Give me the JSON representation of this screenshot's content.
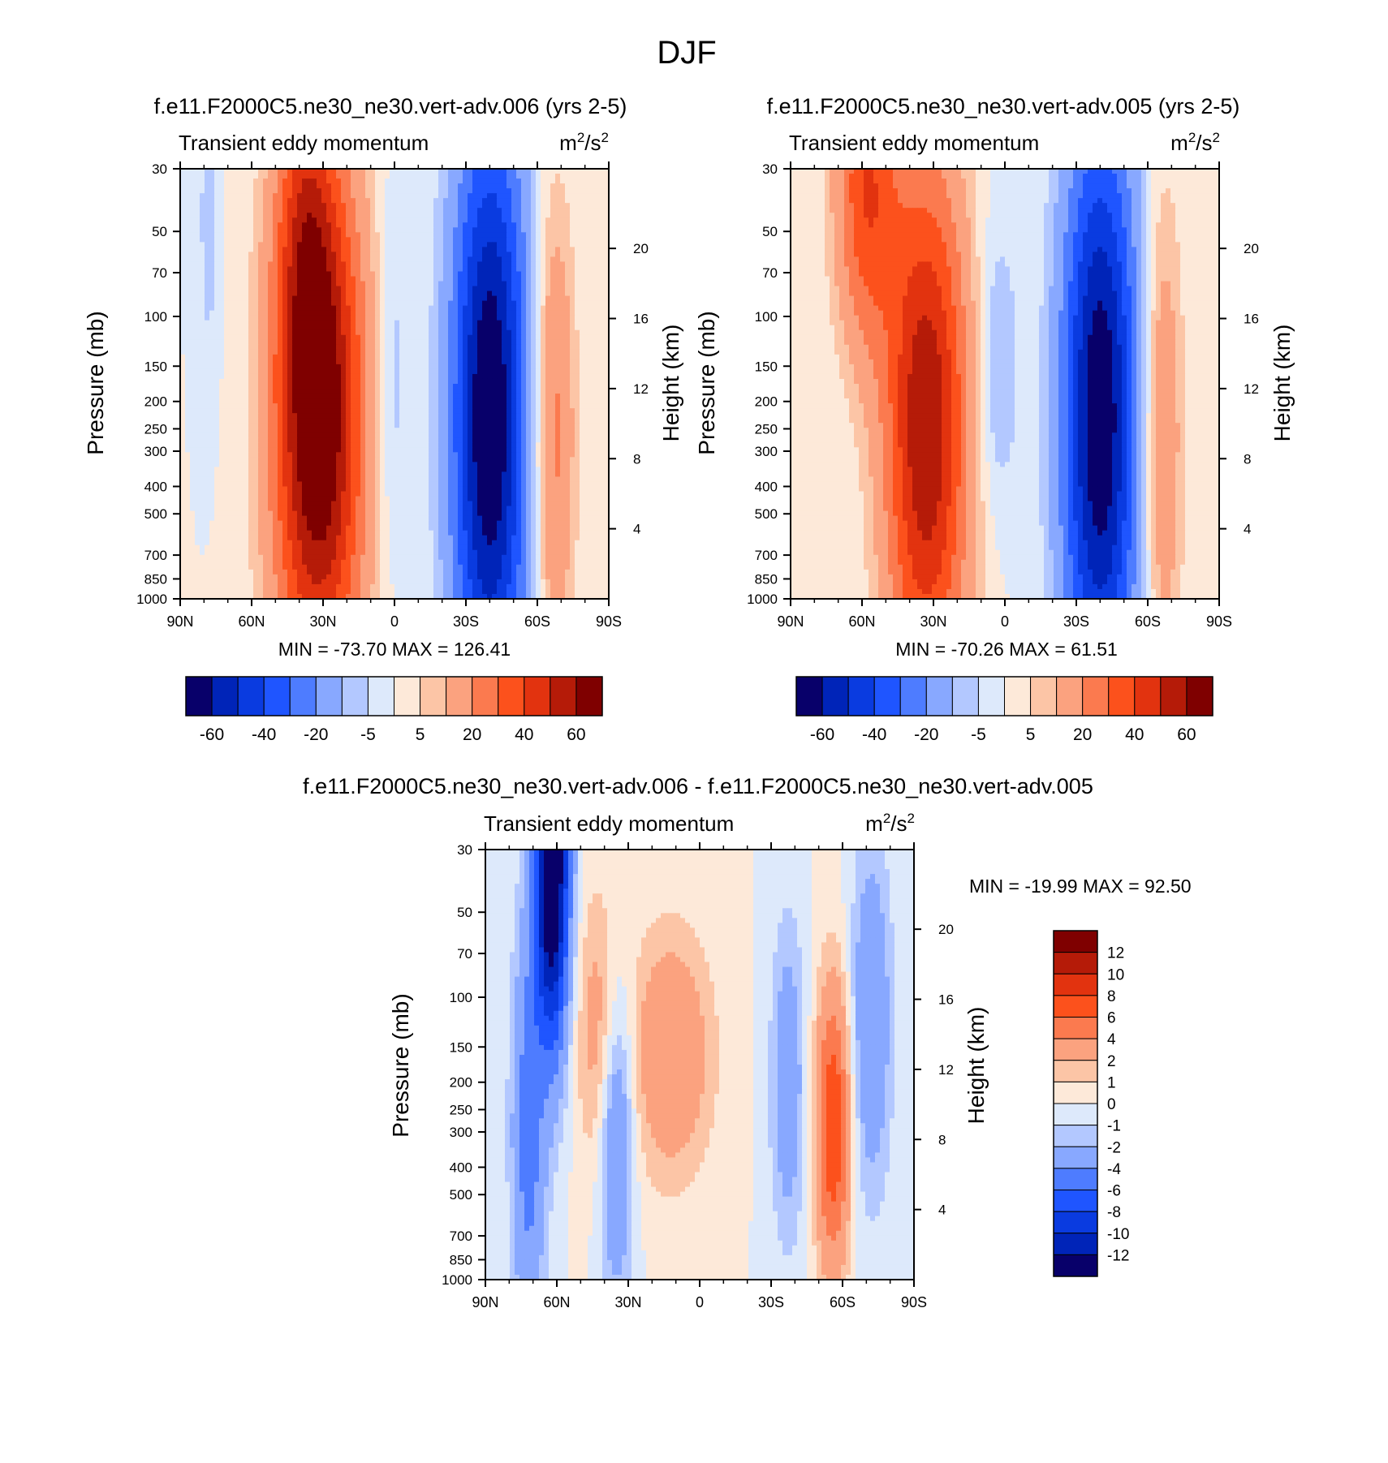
{
  "figure": {
    "title": "DJF"
  },
  "colors": {
    "scale": [
      "#08006a",
      "#0024b8",
      "#0a3be0",
      "#1f55ff",
      "#4e7cff",
      "#88a8ff",
      "#b3c8ff",
      "#dde9fb",
      "#fde9d9",
      "#fcc5a6",
      "#fba27f",
      "#fb7a4f",
      "#fc511c",
      "#e2330f",
      "#b51b08",
      "#7f0000"
    ],
    "frame": "#000000"
  },
  "chart_data": [
    {
      "type": "contour",
      "title": "f.e11.F2000C5.ne30_ne30.vert-adv.006 (yrs 2-5)",
      "left_label": "Transient eddy momentum",
      "units_base": "m",
      "units_sup1": "2",
      "units_mid": "/s",
      "units_sup2": "2",
      "ylabel": "Pressure (mb)",
      "y2label": "Height (km)",
      "x_ticks": [
        "90N",
        "60N",
        "30N",
        "0",
        "30S",
        "60S",
        "90S"
      ],
      "x_values": [
        90,
        60,
        30,
        0,
        -30,
        -60,
        -90
      ],
      "xlim": [
        90,
        -90
      ],
      "y_ticks": [
        30,
        50,
        70,
        100,
        150,
        200,
        250,
        300,
        400,
        500,
        700,
        850,
        1000
      ],
      "y_tick_labels": [
        "30",
        "50",
        "70",
        "100",
        "150",
        "200",
        "250",
        "300",
        "400",
        "500",
        "700",
        "850",
        "1000"
      ],
      "ylim": [
        1000,
        30
      ],
      "height_ticks": [
        4,
        8,
        12,
        16,
        20
      ],
      "height_tick_labels": [
        "4",
        "8",
        "12",
        "16",
        "20"
      ],
      "min_label": "MIN = -73.70  MAX = 126.41",
      "min": -73.7,
      "max": 126.41,
      "colorbar": {
        "orientation": "horizontal",
        "levels": [
          -70,
          -60,
          -50,
          -40,
          -30,
          -20,
          -10,
          -5,
          0,
          5,
          10,
          20,
          30,
          40,
          50,
          60
        ],
        "labels": [
          "-60",
          "-40",
          "-20",
          "-5",
          "5",
          "20",
          "40",
          "60"
        ]
      },
      "features": [
        {
          "lat": 32,
          "p": 230,
          "amp": 75,
          "wlat": 13,
          "wz": 1.5
        },
        {
          "lat": 38,
          "p": 45,
          "amp": 22,
          "wlat": 8,
          "wz": 0.9
        },
        {
          "lat": -40,
          "p": 230,
          "amp": -72,
          "wlat": 11,
          "wz": 1.7
        },
        {
          "lat": -67,
          "p": 260,
          "amp": 24,
          "wlat": 6,
          "wz": 1.3
        },
        {
          "lat": 1,
          "p": 170,
          "amp": -9,
          "wlat": 5,
          "wz": 1.1
        },
        {
          "lat": 78,
          "p": 45,
          "amp": -8,
          "wlat": 3,
          "wz": 0.9
        }
      ]
    },
    {
      "type": "contour",
      "title": "f.e11.F2000C5.ne30_ne30.vert-adv.005 (yrs 2-5)",
      "left_label": "Transient eddy momentum",
      "units_base": "m",
      "units_sup1": "2",
      "units_mid": "/s",
      "units_sup2": "2",
      "ylabel": "Pressure (mb)",
      "y2label": "Height (km)",
      "x_ticks": [
        "90N",
        "60N",
        "30N",
        "0",
        "30S",
        "60S",
        "90S"
      ],
      "x_values": [
        90,
        60,
        30,
        0,
        -30,
        -60,
        -90
      ],
      "xlim": [
        90,
        -90
      ],
      "y_ticks": [
        30,
        50,
        70,
        100,
        150,
        200,
        250,
        300,
        400,
        500,
        700,
        850,
        1000
      ],
      "y_tick_labels": [
        "30",
        "50",
        "70",
        "100",
        "150",
        "200",
        "250",
        "300",
        "400",
        "500",
        "700",
        "850",
        "1000"
      ],
      "ylim": [
        1000,
        30
      ],
      "height_ticks": [
        4,
        8,
        12,
        16,
        20
      ],
      "height_tick_labels": [
        "4",
        "8",
        "12",
        "16",
        "20"
      ],
      "min_label": "MIN = -70.26  MAX =  61.51",
      "min": -70.26,
      "max": 61.51,
      "colorbar": {
        "orientation": "horizontal",
        "levels": [
          -70,
          -60,
          -50,
          -40,
          -30,
          -20,
          -10,
          -5,
          0,
          5,
          10,
          20,
          30,
          40,
          50,
          60
        ],
        "labels": [
          "-60",
          "-40",
          "-20",
          "-5",
          "5",
          "20",
          "40",
          "60"
        ]
      },
      "features": [
        {
          "lat": 33,
          "p": 250,
          "amp": 60,
          "wlat": 12,
          "wz": 1.5
        },
        {
          "lat": 58,
          "p": 35,
          "amp": 38,
          "wlat": 9,
          "wz": 0.9
        },
        {
          "lat": -40,
          "p": 230,
          "amp": -70,
          "wlat": 11,
          "wz": 1.7
        },
        {
          "lat": -66,
          "p": 270,
          "amp": 20,
          "wlat": 6,
          "wz": 1.4
        },
        {
          "lat": 3,
          "p": 150,
          "amp": -12,
          "wlat": 6,
          "wz": 0.8
        }
      ]
    },
    {
      "type": "contour",
      "title": "f.e11.F2000C5.ne30_ne30.vert-adv.006 - f.e11.F2000C5.ne30_ne30.vert-adv.005",
      "left_label": "Transient eddy momentum",
      "units_base": "m",
      "units_sup1": "2",
      "units_mid": "/s",
      "units_sup2": "2",
      "ylabel": "Pressure (mb)",
      "y2label": "Height (km)",
      "x_ticks": [
        "90N",
        "60N",
        "30N",
        "0",
        "30S",
        "60S",
        "90S"
      ],
      "x_values": [
        90,
        60,
        30,
        0,
        -30,
        -60,
        -90
      ],
      "xlim": [
        90,
        -90
      ],
      "y_ticks": [
        30,
        50,
        70,
        100,
        150,
        200,
        250,
        300,
        400,
        500,
        700,
        850,
        1000
      ],
      "y_tick_labels": [
        "30",
        "50",
        "70",
        "100",
        "150",
        "200",
        "250",
        "300",
        "400",
        "500",
        "700",
        "850",
        "1000"
      ],
      "ylim": [
        1000,
        30
      ],
      "height_ticks": [
        4,
        8,
        12,
        16,
        20
      ],
      "height_tick_labels": [
        "4",
        "8",
        "12",
        "16",
        "20"
      ],
      "min_label": "MIN = -19.99  MAX =  92.50",
      "min": -19.99,
      "max": 92.5,
      "colorbar": {
        "orientation": "vertical",
        "levels": [
          -14,
          -12,
          -10,
          -8,
          -6,
          -4,
          -2,
          -1,
          0,
          1,
          2,
          4,
          6,
          8,
          10,
          12
        ],
        "labels": [
          "12",
          "10",
          "8",
          "6",
          "4",
          "2",
          "1",
          "0",
          "-1",
          "-2",
          "-4",
          "-6",
          "-8",
          "-10",
          "-12"
        ]
      },
      "features": [
        {
          "lat": 62,
          "p": 35,
          "amp": -16,
          "wlat": 5,
          "wz": 1.0
        },
        {
          "lat": 72,
          "p": 300,
          "amp": -5,
          "wlat": 5,
          "wz": 1.2
        },
        {
          "lat": 35,
          "p": 300,
          "amp": -5,
          "wlat": 5,
          "wz": 0.9
        },
        {
          "lat": 42,
          "p": 130,
          "amp": 3,
          "wlat": 7,
          "wz": 0.8
        },
        {
          "lat": 12,
          "p": 160,
          "amp": 4,
          "wlat": 12,
          "wz": 0.7
        },
        {
          "lat": -37,
          "p": 200,
          "amp": -3.5,
          "wlat": 5,
          "wz": 0.9
        },
        {
          "lat": -56,
          "p": 290,
          "amp": 8,
          "wlat": 5,
          "wz": 0.8
        },
        {
          "lat": -72,
          "p": 120,
          "amp": -4,
          "wlat": 6,
          "wz": 1.0
        }
      ]
    }
  ]
}
